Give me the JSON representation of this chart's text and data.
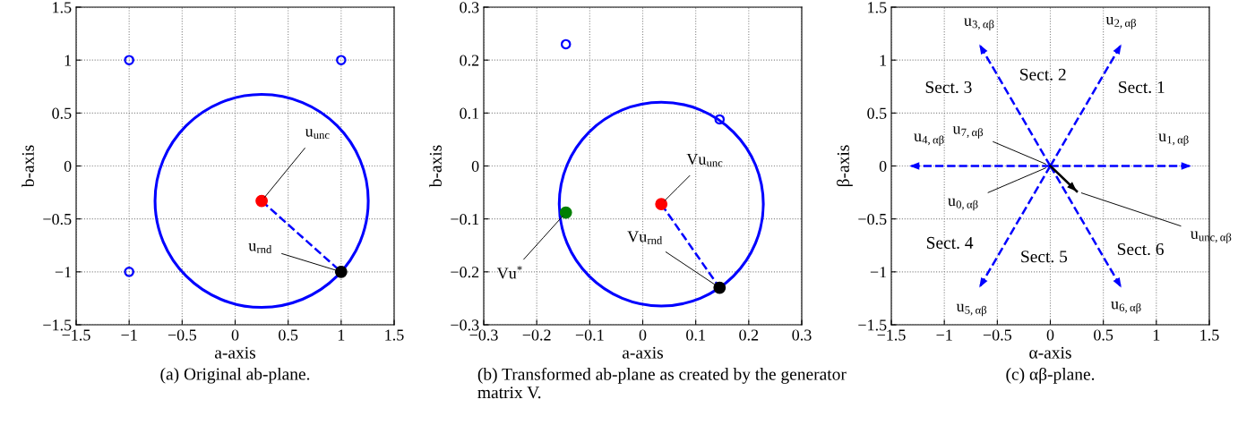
{
  "chart_data": [
    {
      "type": "scatter",
      "title": "(a) Original ab-plane.",
      "xlabel": "a-axis",
      "ylabel": "b-axis",
      "xlim": [
        -1.5,
        1.5
      ],
      "ylim": [
        -1.5,
        1.5
      ],
      "xticks": [
        {
          "value": -1.5,
          "label": "−1.5"
        },
        {
          "value": -1,
          "label": "−1"
        },
        {
          "value": -0.5,
          "label": "−0.5"
        },
        0,
        0.5,
        1,
        1.5
      ],
      "yticks": [
        {
          "value": -1.5,
          "label": "−1.5"
        },
        {
          "value": -1,
          "label": "−1"
        },
        {
          "value": -0.5,
          "label": "−0.5"
        },
        0,
        0.5,
        1,
        1.5
      ],
      "grid": true,
      "series": [
        {
          "type": "line",
          "color": "#0000ff",
          "line_style": "dashed",
          "x": [
            0.25,
            1
          ],
          "values": [
            -0.33,
            -1
          ]
        },
        {
          "type": "scatter",
          "color": "#0000ff",
          "x": [
            -1,
            1,
            -1
          ],
          "values": [
            1,
            1,
            -1
          ]
        },
        {
          "type": "scatter",
          "color": "#ff0000",
          "x": [
            0.25
          ],
          "values": [
            -0.33
          ]
        },
        {
          "type": "scatter",
          "color": "#000000",
          "x": [
            1
          ],
          "values": [
            -1
          ]
        }
      ],
      "annotations": [
        {
          "text": "u$_{unc}$",
          "x": 0.25,
          "y": -0.33
        },
        {
          "text": "u$_{rnd}$",
          "x": 1,
          "y": -1
        }
      ]
    },
    {
      "type": "scatter",
      "title": "(b) Transformed ab-plane as created by the generator\nmatrix V.",
      "xlabel": "a-axis",
      "ylabel": "b-axis",
      "xlim": [
        -0.3,
        0.3
      ],
      "ylim": [
        -0.3,
        0.3
      ],
      "xticks": [
        {
          "value": -0.3,
          "label": "−0.3"
        },
        {
          "value": -0.2,
          "label": "−0.2"
        },
        {
          "value": -0.1,
          "label": "−0.1"
        },
        0,
        0.1,
        0.2,
        0.3
      ],
      "yticks": [
        {
          "value": -0.3,
          "label": "−0.3"
        },
        {
          "value": -0.2,
          "label": "−0.2"
        },
        {
          "value": -0.1,
          "label": "−0.1"
        },
        0,
        0.1,
        0.2,
        0.3
      ],
      "grid": true,
      "series": [
        {
          "type": "line",
          "color": "#0000ff",
          "line_style": "dashed",
          "x": [
            0.035,
            0.145
          ],
          "values": [
            -0.072,
            -0.23
          ]
        },
        {
          "type": "scatter",
          "color": "#0000ff",
          "x": [
            -0.145,
            0.145
          ],
          "values": [
            0.23,
            0.088
          ]
        },
        {
          "type": "scatter",
          "color": "#008000",
          "x": [
            -0.145
          ],
          "values": [
            -0.088
          ]
        },
        {
          "type": "scatter",
          "color": "#ff0000",
          "x": [
            0.035
          ],
          "values": [
            -0.072
          ]
        },
        {
          "type": "scatter",
          "color": "#000000",
          "x": [
            0.145
          ],
          "values": [
            -0.23
          ]
        }
      ],
      "annotations": [
        {
          "text": "Vu$_{unc}$",
          "x": 0.035,
          "y": -0.072
        },
        {
          "text": "Vu$_{rnd}$",
          "x": 0.145,
          "y": -0.23
        },
        {
          "text": "Vu$^{*}$",
          "x": -0.145,
          "y": -0.088
        }
      ]
    },
    {
      "type": "line",
      "title": "(c) αβ-plane.",
      "xlabel": "α-axis",
      "ylabel": "β-axis",
      "xlim": [
        -1.5,
        1.5
      ],
      "ylim": [
        -1.5,
        1.5
      ],
      "xticks": [
        {
          "value": -1.5,
          "label": "−1.5"
        },
        {
          "value": -1,
          "label": "−1"
        },
        {
          "value": -0.5,
          "label": "−0.5"
        },
        0,
        0.5,
        1,
        1.5
      ],
      "yticks": [
        {
          "value": -1.5,
          "label": "−1.5"
        },
        {
          "value": -1,
          "label": "−1"
        },
        {
          "value": -0.5,
          "label": "−0.5"
        },
        0,
        0.5,
        1,
        1.5
      ],
      "grid": true,
      "series": [
        {
          "color": "#0000ff",
          "line_style": "dashed",
          "x": [
            0,
            1.33
          ],
          "values": [
            0,
            0
          ]
        },
        {
          "color": "#0000ff",
          "line_style": "dashed",
          "x": [
            0,
            0.67
          ],
          "values": [
            0,
            1.15
          ]
        },
        {
          "color": "#0000ff",
          "line_style": "dashed",
          "x": [
            0,
            -0.67
          ],
          "values": [
            0,
            1.15
          ]
        },
        {
          "color": "#0000ff",
          "line_style": "dashed",
          "x": [
            0,
            -1.33
          ],
          "values": [
            0,
            0
          ]
        },
        {
          "color": "#0000ff",
          "line_style": "dashed",
          "x": [
            0,
            -0.67
          ],
          "values": [
            0,
            -1.15
          ]
        },
        {
          "color": "#0000ff",
          "line_style": "dashed",
          "x": [
            0,
            0.67
          ],
          "values": [
            0,
            -1.15
          ]
        },
        {
          "color": "#000000",
          "line_style": "solid",
          "x": [
            0,
            0.25
          ],
          "values": [
            0,
            -0.24
          ]
        }
      ],
      "annotations": [
        {
          "text": "u$_{1,αβ}$",
          "x": 1.33,
          "y": 0
        },
        {
          "text": "u$_{2,αβ}$",
          "x": 0.67,
          "y": 1.15
        },
        {
          "text": "u$_{3,αβ}$",
          "x": -0.67,
          "y": 1.15
        },
        {
          "text": "u$_{4,αβ}$",
          "x": -1.33,
          "y": 0
        },
        {
          "text": "u$_{5,αβ}$",
          "x": -0.67,
          "y": -1.15
        },
        {
          "text": "u$_{6,αβ}$",
          "x": 0.67,
          "y": -1.15
        },
        {
          "text": "u$_{7,αβ}$",
          "x": 0,
          "y": 0
        },
        {
          "text": "u$_{0,αβ}$",
          "x": 0,
          "y": 0
        },
        {
          "text": "u$_{unc,αβ}$",
          "x": 0.25,
          "y": -0.24
        },
        "Sect. 1",
        "Sect. 2",
        "Sect. 3",
        "Sect. 4",
        "Sect. 5",
        "Sect. 6"
      ]
    }
  ]
}
